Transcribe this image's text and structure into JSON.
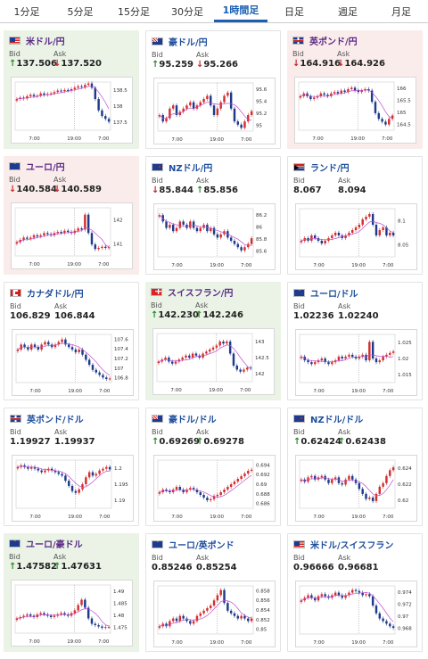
{
  "tabs": [
    {
      "label": "1分足",
      "active": false
    },
    {
      "label": "5分足",
      "active": false
    },
    {
      "label": "15分足",
      "active": false
    },
    {
      "label": "30分足",
      "active": false
    },
    {
      "label": "1時間足",
      "active": true
    },
    {
      "label": "日足",
      "active": false
    },
    {
      "label": "週足",
      "active": false
    },
    {
      "label": "月足",
      "active": false
    }
  ],
  "labels": {
    "bid": "Bid",
    "ask": "Ask"
  },
  "colors": {
    "up": "#2e8b2e",
    "down": "#c62828",
    "candle_up": "#d32f2f",
    "candle_down": "#1e3a8a",
    "ma": "#c04dd0",
    "card_up": "#eaf3e6",
    "card_down": "#fbecec"
  },
  "cards": [
    {
      "pair": "米ドル/円",
      "flag": "us-flag-icon",
      "trend": "up",
      "bid": "137.506",
      "ask": "137.520",
      "bid_dir": "up",
      "ask_dir": "down",
      "chart_data": {
        "type": "candlestick",
        "y_ticks": [
          "138.5",
          "138",
          "137.5"
        ],
        "x_ticks": [
          "7:00",
          "19:00",
          "7:00"
        ],
        "ylim": [
          137.2,
          138.9
        ],
        "close": [
          138.3,
          138.35,
          138.32,
          138.4,
          138.45,
          138.4,
          138.42,
          138.5,
          138.45,
          138.48,
          138.5,
          138.55,
          138.6,
          138.58,
          138.62,
          138.6,
          138.65,
          138.7,
          138.75,
          138.72,
          138.8,
          138.85,
          138.7,
          138.3,
          137.9,
          137.7,
          137.6,
          137.5
        ]
      }
    },
    {
      "pair": "豪ドル/円",
      "flag": "au-flag-icon",
      "trend": "neutral",
      "bid": "95.259",
      "ask": "95.266",
      "bid_dir": "up",
      "ask_dir": "down",
      "chart_data": {
        "type": "candlestick",
        "y_ticks": [
          "95.6",
          "95.4",
          "95.2",
          "95"
        ],
        "x_ticks": [
          "7:00",
          "19:00",
          "7:00"
        ],
        "ylim": [
          94.95,
          95.7
        ],
        "close": [
          95.2,
          95.1,
          95.15,
          95.3,
          95.35,
          95.2,
          95.25,
          95.3,
          95.35,
          95.4,
          95.3,
          95.35,
          95.4,
          95.45,
          95.5,
          95.35,
          95.2,
          95.3,
          95.4,
          95.5,
          95.55,
          95.3,
          95.1,
          95.05,
          95.0,
          95.1,
          95.2,
          95.26
        ]
      }
    },
    {
      "pair": "英ポンド/円",
      "flag": "gb-flag-icon",
      "trend": "down",
      "bid": "164.916",
      "ask": "164.926",
      "bid_dir": "down",
      "ask_dir": "down",
      "chart_data": {
        "type": "candlestick",
        "y_ticks": [
          "166",
          "165.5",
          "165",
          "164.5"
        ],
        "x_ticks": [
          "7:00",
          "19:00",
          "7:00"
        ],
        "ylim": [
          164.4,
          166.1
        ],
        "close": [
          165.6,
          165.7,
          165.6,
          165.5,
          165.55,
          165.6,
          165.7,
          165.65,
          165.6,
          165.7,
          165.75,
          165.7,
          165.8,
          165.75,
          165.85,
          165.9,
          165.8,
          165.75,
          165.8,
          165.85,
          165.8,
          165.4,
          165.0,
          164.8,
          164.7,
          164.6,
          164.8,
          164.92
        ]
      }
    },
    {
      "pair": "ユーロ/円",
      "flag": "eu-flag-icon",
      "trend": "down",
      "bid": "140.584",
      "ask": "140.589",
      "bid_dir": "down",
      "ask_dir": "down",
      "chart_data": {
        "type": "candlestick",
        "y_ticks": [
          "142",
          "141"
        ],
        "x_ticks": [
          "7:00",
          "19:00",
          "7:00"
        ],
        "ylim": [
          140.2,
          142.3
        ],
        "close": [
          140.8,
          140.9,
          141.0,
          140.95,
          141.0,
          141.1,
          141.05,
          141.1,
          141.2,
          141.15,
          141.1,
          141.2,
          141.25,
          141.2,
          141.3,
          141.25,
          141.2,
          141.3,
          141.4,
          141.35,
          142.0,
          141.2,
          140.7,
          140.5,
          140.55,
          140.6,
          140.55,
          140.58
        ]
      }
    },
    {
      "pair": "NZドル/円",
      "flag": "nz-flag-icon",
      "trend": "neutral",
      "bid": "85.844",
      "ask": "85.856",
      "bid_dir": "down",
      "ask_dir": "up",
      "chart_data": {
        "type": "candlestick",
        "y_ticks": [
          "86.2",
          "86",
          "85.8",
          "85.6"
        ],
        "x_ticks": [
          "7:00",
          "19:00",
          "7:00"
        ],
        "ylim": [
          85.55,
          86.3
        ],
        "close": [
          86.2,
          86.1,
          86.0,
          86.05,
          85.95,
          86.0,
          86.1,
          86.05,
          86.0,
          86.1,
          86.0,
          85.95,
          86.0,
          86.05,
          85.95,
          86.0,
          85.9,
          85.85,
          85.9,
          85.95,
          85.85,
          85.8,
          85.75,
          85.7,
          85.65,
          85.7,
          85.75,
          85.84
        ]
      }
    },
    {
      "pair": "ランド/円",
      "flag": "za-flag-icon",
      "trend": "neutral",
      "bid": "8.067",
      "ask": "8.094",
      "bid_dir": "none",
      "ask_dir": "none",
      "chart_data": {
        "type": "candlestick",
        "y_ticks": [
          "8.1",
          "8.05"
        ],
        "x_ticks": [
          "7:00",
          "19:00",
          "7:00"
        ],
        "ylim": [
          8.03,
          8.12
        ],
        "close": [
          8.06,
          8.065,
          8.06,
          8.07,
          8.065,
          8.06,
          8.055,
          8.06,
          8.065,
          8.07,
          8.075,
          8.07,
          8.065,
          8.07,
          8.075,
          8.08,
          8.085,
          8.09,
          8.1,
          8.105,
          8.11,
          8.09,
          8.07,
          8.08,
          8.085,
          8.07,
          8.075,
          8.07
        ]
      }
    },
    {
      "pair": "カナダドル/円",
      "flag": "ca-flag-icon",
      "trend": "neutral",
      "bid": "106.829",
      "ask": "106.844",
      "bid_dir": "none",
      "ask_dir": "none",
      "chart_data": {
        "type": "candlestick",
        "y_ticks": [
          "107.6",
          "107.4",
          "107.2",
          "107",
          "106.8"
        ],
        "x_ticks": [
          "7:00",
          "19:00",
          "7:00"
        ],
        "ylim": [
          106.75,
          107.7
        ],
        "close": [
          107.4,
          107.5,
          107.45,
          107.4,
          107.5,
          107.45,
          107.4,
          107.5,
          107.55,
          107.5,
          107.45,
          107.5,
          107.55,
          107.6,
          107.5,
          107.45,
          107.4,
          107.35,
          107.4,
          107.3,
          107.2,
          107.1,
          107.0,
          106.95,
          106.9,
          106.85,
          106.82,
          106.83
        ]
      }
    },
    {
      "pair": "スイスフラン/円",
      "flag": "ch-flag-icon",
      "trend": "up",
      "bid": "142.230",
      "ask": "142.246",
      "bid_dir": "up",
      "ask_dir": "up",
      "chart_data": {
        "type": "candlestick",
        "y_ticks": [
          "143",
          "142.5",
          "142"
        ],
        "x_ticks": [
          "7:00",
          "19:00",
          "7:00"
        ],
        "ylim": [
          141.9,
          143.1
        ],
        "close": [
          142.4,
          142.45,
          142.5,
          142.4,
          142.35,
          142.4,
          142.45,
          142.5,
          142.55,
          142.5,
          142.6,
          142.55,
          142.5,
          142.6,
          142.65,
          142.7,
          142.75,
          142.8,
          142.9,
          142.85,
          142.9,
          142.6,
          142.3,
          142.2,
          142.15,
          142.2,
          142.25,
          142.23
        ]
      }
    },
    {
      "pair": "ユーロ/ドル",
      "flag": "eu-flag-icon",
      "trend": "neutral",
      "bid": "1.02236",
      "ask": "1.02240",
      "bid_dir": "none",
      "ask_dir": "none",
      "chart_data": {
        "type": "candlestick",
        "y_ticks": [
          "1.025",
          "1.02",
          "1.015"
        ],
        "x_ticks": [
          "7:00",
          "19:00",
          "7:00"
        ],
        "ylim": [
          1.014,
          1.027
        ],
        "close": [
          1.021,
          1.02,
          1.0195,
          1.019,
          1.0195,
          1.02,
          1.0205,
          1.0195,
          1.019,
          1.0195,
          1.02,
          1.021,
          1.0205,
          1.021,
          1.0215,
          1.021,
          1.0205,
          1.021,
          1.0215,
          1.02,
          1.025,
          1.0205,
          1.0195,
          1.02,
          1.021,
          1.0215,
          1.022,
          1.0224
        ]
      }
    },
    {
      "pair": "英ポンド/ドル",
      "flag": "gb-flag-icon",
      "trend": "neutral",
      "bid": "1.19927",
      "ask": "1.19937",
      "bid_dir": "none",
      "ask_dir": "none",
      "chart_data": {
        "type": "candlestick",
        "y_ticks": [
          "1.2",
          "1.195",
          "1.19"
        ],
        "x_ticks": [
          "7:00",
          "19:00",
          "7:00"
        ],
        "ylim": [
          1.188,
          1.202
        ],
        "close": [
          1.2,
          1.2005,
          1.2,
          1.1995,
          1.2,
          1.1995,
          1.199,
          1.1985,
          1.199,
          1.1995,
          1.199,
          1.1985,
          1.198,
          1.1975,
          1.196,
          1.1945,
          1.193,
          1.1925,
          1.1935,
          1.195,
          1.197,
          1.1985,
          1.1975,
          1.198,
          1.199,
          1.1995,
          1.2,
          1.1993
        ]
      }
    },
    {
      "pair": "豪ドル/ドル",
      "flag": "au-flag-icon",
      "trend": "neutral",
      "bid": "0.69269",
      "ask": "0.69278",
      "bid_dir": "up",
      "ask_dir": "up",
      "chart_data": {
        "type": "candlestick",
        "y_ticks": [
          "0.694",
          "0.692",
          "0.69",
          "0.688",
          "0.686"
        ],
        "x_ticks": [
          "7:00",
          "19:00",
          "7:00"
        ],
        "ylim": [
          0.6855,
          0.6945
        ],
        "close": [
          0.6885,
          0.689,
          0.6888,
          0.6885,
          0.689,
          0.6895,
          0.689,
          0.6885,
          0.689,
          0.6893,
          0.689,
          0.6885,
          0.688,
          0.6875,
          0.687,
          0.6872,
          0.6878,
          0.688,
          0.6885,
          0.689,
          0.6895,
          0.69,
          0.6905,
          0.691,
          0.6915,
          0.692,
          0.6925,
          0.6927
        ]
      }
    },
    {
      "pair": "NZドル/ドル",
      "flag": "nz-flag-icon",
      "trend": "neutral",
      "bid": "0.62424",
      "ask": "0.62438",
      "bid_dir": "up",
      "ask_dir": "up",
      "chart_data": {
        "type": "candlestick",
        "y_ticks": [
          "0.624",
          "0.622",
          "0.62"
        ],
        "x_ticks": [
          "7:00",
          "19:00",
          "7:00"
        ],
        "ylim": [
          0.6185,
          0.6252
        ],
        "close": [
          0.6225,
          0.6222,
          0.6228,
          0.623,
          0.6225,
          0.6228,
          0.623,
          0.6225,
          0.622,
          0.6225,
          0.6228,
          0.622,
          0.6218,
          0.6225,
          0.623,
          0.6225,
          0.622,
          0.6212,
          0.6205,
          0.6198,
          0.62,
          0.6195,
          0.6205,
          0.6215,
          0.622,
          0.623,
          0.6238,
          0.6242
        ]
      }
    },
    {
      "pair": "ユーロ/豪ドル",
      "flag": "eu-flag-icon",
      "trend": "up",
      "bid": "1.47582",
      "ask": "1.47631",
      "bid_dir": "up",
      "ask_dir": "up",
      "chart_data": {
        "type": "candlestick",
        "y_ticks": [
          "1.49",
          "1.485",
          "1.48",
          "1.475"
        ],
        "x_ticks": [
          "7:00",
          "19:00",
          "7:00"
        ],
        "ylim": [
          1.4735,
          1.4915
        ],
        "close": [
          1.479,
          1.4795,
          1.48,
          1.4805,
          1.48,
          1.4795,
          1.4805,
          1.481,
          1.4805,
          1.48,
          1.4795,
          1.48,
          1.4805,
          1.481,
          1.4805,
          1.48,
          1.481,
          1.482,
          1.484,
          1.486,
          1.483,
          1.479,
          1.477,
          1.4765,
          1.476,
          1.4755,
          1.4758,
          1.4758
        ]
      }
    },
    {
      "pair": "ユーロ/英ポンド",
      "flag": "eu-flag-icon",
      "trend": "neutral",
      "bid": "0.85246",
      "ask": "0.85254",
      "bid_dir": "none",
      "ask_dir": "none",
      "chart_data": {
        "type": "candlestick",
        "y_ticks": [
          "0.858",
          "0.856",
          "0.854",
          "0.852",
          "0.85"
        ],
        "x_ticks": [
          "7:00",
          "19:00",
          "7:00"
        ],
        "ylim": [
          0.8495,
          0.8588
        ],
        "close": [
          0.851,
          0.8515,
          0.851,
          0.852,
          0.8525,
          0.852,
          0.853,
          0.8525,
          0.852,
          0.8515,
          0.852,
          0.853,
          0.8535,
          0.854,
          0.8545,
          0.855,
          0.856,
          0.857,
          0.858,
          0.8555,
          0.854,
          0.8535,
          0.853,
          0.8525,
          0.853,
          0.8525,
          0.852,
          0.8525
        ]
      }
    },
    {
      "pair": "米ドル/スイスフラン",
      "flag": "us-flag-icon",
      "trend": "neutral",
      "bid": "0.96666",
      "ask": "0.96681",
      "bid_dir": "none",
      "ask_dir": "none",
      "chart_data": {
        "type": "candlestick",
        "y_ticks": [
          "0.974",
          "0.972",
          "0.97",
          "0.968"
        ],
        "x_ticks": [
          "7:00",
          "19:00",
          "7:00"
        ],
        "ylim": [
          0.9655,
          0.9748
        ],
        "close": [
          0.972,
          0.9725,
          0.973,
          0.9725,
          0.972,
          0.9728,
          0.9732,
          0.9728,
          0.9725,
          0.973,
          0.9735,
          0.973,
          0.9725,
          0.973,
          0.9735,
          0.974,
          0.9738,
          0.9735,
          0.973,
          0.9732,
          0.9728,
          0.971,
          0.9695,
          0.9685,
          0.968,
          0.9675,
          0.967,
          0.9667
        ]
      }
    }
  ]
}
